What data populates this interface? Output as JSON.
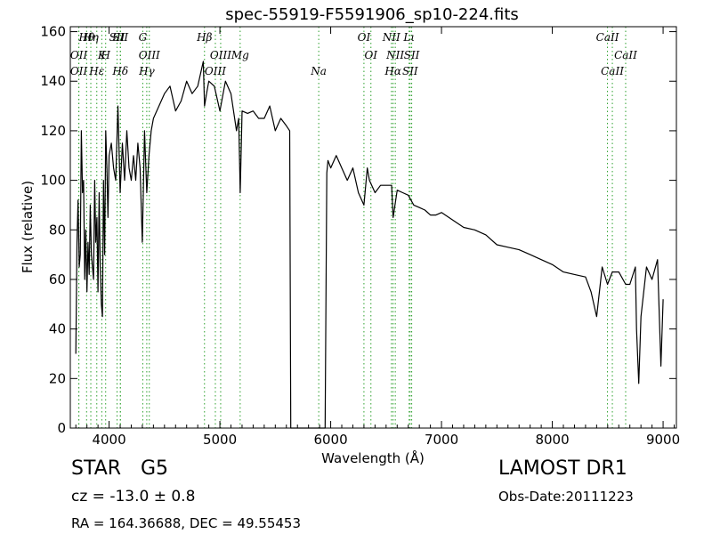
{
  "chart_data": {
    "type": "line",
    "title": "spec-55919-F5591906_sp10-224.fits",
    "xlabel": "Wavelength (Å)",
    "ylabel": "Flux (relative)",
    "xlim": [
      3650,
      9120
    ],
    "ylim": [
      0,
      162
    ],
    "xticks": [
      4000,
      5000,
      6000,
      7000,
      8000,
      9000
    ],
    "yticks": [
      0,
      20,
      40,
      60,
      80,
      100,
      120,
      140,
      160
    ],
    "line_color": "#000000",
    "marker_color": "#2ca02c",
    "grid": false,
    "series": [
      {
        "x": [
          3700,
          3710,
          3720,
          3730,
          3740,
          3750,
          3760,
          3770,
          3780,
          3790,
          3800,
          3810,
          3820,
          3830,
          3840,
          3850,
          3860,
          3870,
          3880,
          3890,
          3900,
          3910,
          3920,
          3930,
          3940,
          3950,
          3960,
          3970,
          3980,
          3990,
          4000,
          4020,
          4040,
          4060,
          4080,
          4100,
          4120,
          4140,
          4160,
          4180,
          4200,
          4220,
          4240,
          4260,
          4280,
          4300,
          4320,
          4340,
          4360,
          4380,
          4400,
          4450,
          4500,
          4550,
          4600,
          4650,
          4700,
          4750,
          4800,
          4850,
          4861,
          4880,
          4900,
          4950,
          5000,
          5050,
          5100,
          5150,
          5170,
          5183,
          5200,
          5250,
          5300,
          5350,
          5400,
          5450,
          5500,
          5550,
          5600,
          5630,
          5640,
          5660,
          5700,
          5800,
          5900,
          5950,
          5965,
          5975,
          6000,
          6050,
          6100,
          6150,
          6200,
          6250,
          6300,
          6330,
          6350,
          6400,
          6450,
          6500,
          6550,
          6563,
          6600,
          6650,
          6700,
          6750,
          6800,
          6850,
          6900,
          6950,
          7000,
          7100,
          7200,
          7300,
          7400,
          7500,
          7600,
          7700,
          7800,
          7900,
          8000,
          8100,
          8200,
          8300,
          8350,
          8400,
          8450,
          8498,
          8542,
          8600,
          8662,
          8700,
          8750,
          8760,
          8780,
          8800,
          8850,
          8900,
          8950,
          8980,
          9000
        ],
        "y": [
          30,
          75,
          92,
          65,
          70,
          120,
          95,
          100,
          60,
          80,
          55,
          75,
          62,
          90,
          70,
          65,
          60,
          100,
          75,
          85,
          55,
          95,
          65,
          50,
          45,
          100,
          70,
          120,
          105,
          85,
          110,
          115,
          105,
          100,
          130,
          95,
          115,
          100,
          120,
          105,
          100,
          110,
          100,
          115,
          105,
          75,
          120,
          95,
          110,
          120,
          125,
          130,
          135,
          138,
          128,
          132,
          140,
          135,
          138,
          148,
          130,
          135,
          140,
          138,
          128,
          140,
          135,
          120,
          125,
          95,
          128,
          127,
          128,
          125,
          125,
          130,
          120,
          125,
          122,
          120,
          0,
          0,
          0,
          0,
          0,
          0,
          103,
          108,
          105,
          110,
          105,
          100,
          105,
          95,
          90,
          105,
          100,
          95,
          98,
          98,
          98,
          85,
          96,
          95,
          94,
          90,
          89,
          88,
          86,
          86,
          87,
          84,
          81,
          80,
          78,
          74,
          73,
          72,
          70,
          68,
          66,
          63,
          62,
          61,
          55,
          45,
          65,
          58,
          63,
          63,
          58,
          58,
          65,
          40,
          18,
          45,
          65,
          60,
          68,
          25,
          52
        ]
      }
    ],
    "spectral_lines": [
      {
        "name": "Hθ",
        "x": 3797
      },
      {
        "name": "OII",
        "x": 3727
      },
      {
        "name": "OII",
        "x": 3727
      },
      {
        "name": "Hη",
        "x": 3835
      },
      {
        "name": "K",
        "x": 3934
      },
      {
        "name": "Hε",
        "x": 3889
      },
      {
        "name": "SII",
        "x": 4072
      },
      {
        "name": "H",
        "x": 3969
      },
      {
        "name": "Hδ",
        "x": 4102
      },
      {
        "name": "SII",
        "x": 4102
      },
      {
        "name": "OIII",
        "x": 4363
      },
      {
        "name": "Hγ",
        "x": 4340
      },
      {
        "name": "G",
        "x": 4304
      },
      {
        "name": "OIII",
        "x": 5007
      },
      {
        "name": "OIII",
        "x": 4959
      },
      {
        "name": "Hβ",
        "x": 4861
      },
      {
        "name": "Mg",
        "x": 5183
      },
      {
        "name": "Na",
        "x": 5892
      },
      {
        "name": "OI",
        "x": 6300
      },
      {
        "name": "OI",
        "x": 6363
      },
      {
        "name": "Hα",
        "x": 6563
      },
      {
        "name": "NII",
        "x": 6548
      },
      {
        "name": "NII",
        "x": 6583
      },
      {
        "name": "SII",
        "x": 6717
      },
      {
        "name": "Lι",
        "x": 6708
      },
      {
        "name": "SII",
        "x": 6731
      },
      {
        "name": "CaII",
        "x": 8542
      },
      {
        "name": "CaII",
        "x": 8498
      },
      {
        "name": "CaII",
        "x": 8662
      }
    ]
  },
  "info": {
    "object_class": "STAR",
    "subclass": "G5",
    "survey": "LAMOST DR1",
    "redshift_text": "cz = -13.0 ± 0.8",
    "obs_date": "Obs-Date:20111223",
    "coords": "RA = 164.36688, DEC = 49.55453"
  }
}
